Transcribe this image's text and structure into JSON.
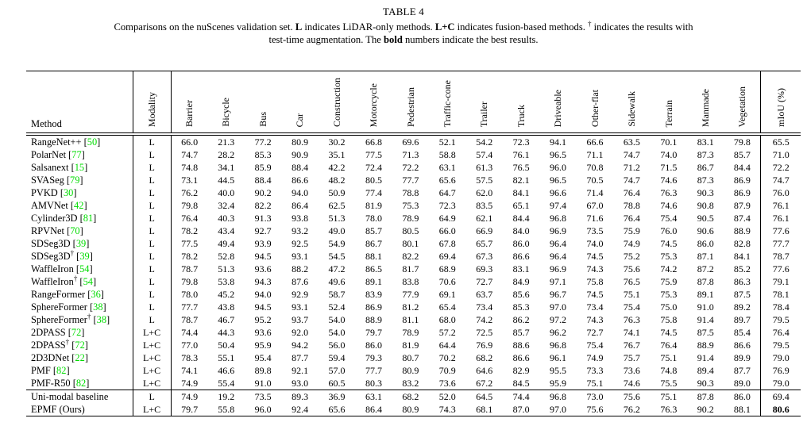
{
  "title": "TABLE 4",
  "caption": {
    "line1": [
      {
        "t": "Comparisons on the nuScenes validation set. "
      },
      {
        "t": "L",
        "b": true
      },
      {
        "t": " indicates LiDAR-only methods. "
      },
      {
        "t": "L+C",
        "b": true
      },
      {
        "t": " indicates fusion-based methods. "
      },
      {
        "t": "†",
        "sup": true
      },
      {
        "t": " indicates the results with"
      }
    ],
    "line2": [
      {
        "t": "test-time augmentation. The "
      },
      {
        "t": "bold",
        "b": true
      },
      {
        "t": " numbers indicate the best results."
      }
    ]
  },
  "table": {
    "citation_color": "#00dc00",
    "method_header": "Method",
    "modality_header": "Modality",
    "class_headers": [
      "Barrier",
      "Bicycle",
      "Bus",
      "Car",
      "Construction",
      "Motorcycle",
      "Pedestrian",
      "Traffic-cone",
      "Trailer",
      "Truck",
      "Driveable",
      "Other-flat",
      "Sidewalk",
      "Terrain",
      "Manmade",
      "Vegetation"
    ],
    "miou_header": "mIoU (%)",
    "rows": [
      {
        "method": "RangeNet++",
        "dagger": false,
        "cite": "50",
        "modality": "L",
        "values": [
          "66.0",
          "21.3",
          "77.2",
          "80.9",
          "30.2",
          "66.8",
          "69.6",
          "52.1",
          "54.2",
          "72.3",
          "94.1",
          "66.6",
          "63.5",
          "70.1",
          "83.1",
          "79.8"
        ],
        "miou": "65.5",
        "miou_bold": false,
        "separator_above": false
      },
      {
        "method": "PolarNet",
        "dagger": false,
        "cite": "77",
        "modality": "L",
        "values": [
          "74.7",
          "28.2",
          "85.3",
          "90.9",
          "35.1",
          "77.5",
          "71.3",
          "58.8",
          "57.4",
          "76.1",
          "96.5",
          "71.1",
          "74.7",
          "74.0",
          "87.3",
          "85.7"
        ],
        "miou": "71.0",
        "miou_bold": false,
        "separator_above": false
      },
      {
        "method": "Salsanext",
        "dagger": false,
        "cite": "15",
        "modality": "L",
        "values": [
          "74.8",
          "34.1",
          "85.9",
          "88.4",
          "42.2",
          "72.4",
          "72.2",
          "63.1",
          "61.3",
          "76.5",
          "96.0",
          "70.8",
          "71.2",
          "71.5",
          "86.7",
          "84.4"
        ],
        "miou": "72.2",
        "miou_bold": false,
        "separator_above": false
      },
      {
        "method": "SVASeg",
        "dagger": false,
        "cite": "79",
        "modality": "L",
        "values": [
          "73.1",
          "44.5",
          "88.4",
          "86.6",
          "48.2",
          "80.5",
          "77.7",
          "65.6",
          "57.5",
          "82.1",
          "96.5",
          "70.5",
          "74.7",
          "74.6",
          "87.3",
          "86.9"
        ],
        "miou": "74.7",
        "miou_bold": false,
        "separator_above": false
      },
      {
        "method": "PVKD",
        "dagger": false,
        "cite": "30",
        "modality": "L",
        "values": [
          "76.2",
          "40.0",
          "90.2",
          "94.0",
          "50.9",
          "77.4",
          "78.8",
          "64.7",
          "62.0",
          "84.1",
          "96.6",
          "71.4",
          "76.4",
          "76.3",
          "90.3",
          "86.9"
        ],
        "miou": "76.0",
        "miou_bold": false,
        "separator_above": false
      },
      {
        "method": "AMVNet",
        "dagger": false,
        "cite": "42",
        "modality": "L",
        "values": [
          "79.8",
          "32.4",
          "82.2",
          "86.4",
          "62.5",
          "81.9",
          "75.3",
          "72.3",
          "83.5",
          "65.1",
          "97.4",
          "67.0",
          "78.8",
          "74.6",
          "90.8",
          "87.9"
        ],
        "miou": "76.1",
        "miou_bold": false,
        "separator_above": false
      },
      {
        "method": "Cylinder3D",
        "dagger": false,
        "cite": "81",
        "modality": "L",
        "values": [
          "76.4",
          "40.3",
          "91.3",
          "93.8",
          "51.3",
          "78.0",
          "78.9",
          "64.9",
          "62.1",
          "84.4",
          "96.8",
          "71.6",
          "76.4",
          "75.4",
          "90.5",
          "87.4"
        ],
        "miou": "76.1",
        "miou_bold": false,
        "separator_above": false
      },
      {
        "method": "RPVNet",
        "dagger": false,
        "cite": "70",
        "modality": "L",
        "values": [
          "78.2",
          "43.4",
          "92.7",
          "93.2",
          "49.0",
          "85.7",
          "80.5",
          "66.0",
          "66.9",
          "84.0",
          "96.9",
          "73.5",
          "75.9",
          "76.0",
          "90.6",
          "88.9"
        ],
        "miou": "77.6",
        "miou_bold": false,
        "separator_above": false
      },
      {
        "method": "SDSeg3D",
        "dagger": false,
        "cite": "39",
        "modality": "L",
        "values": [
          "77.5",
          "49.4",
          "93.9",
          "92.5",
          "54.9",
          "86.7",
          "80.1",
          "67.8",
          "65.7",
          "86.0",
          "96.4",
          "74.0",
          "74.9",
          "74.5",
          "86.0",
          "82.8"
        ],
        "miou": "77.7",
        "miou_bold": false,
        "separator_above": false
      },
      {
        "method": "SDSeg3D",
        "dagger": true,
        "cite": "39",
        "modality": "L",
        "values": [
          "78.2",
          "52.8",
          "94.5",
          "93.1",
          "54.5",
          "88.1",
          "82.2",
          "69.4",
          "67.3",
          "86.6",
          "96.4",
          "74.5",
          "75.2",
          "75.3",
          "87.1",
          "84.1"
        ],
        "miou": "78.7",
        "miou_bold": false,
        "separator_above": false
      },
      {
        "method": "WaffleIron",
        "dagger": false,
        "cite": "54",
        "modality": "L",
        "values": [
          "78.7",
          "51.3",
          "93.6",
          "88.2",
          "47.2",
          "86.5",
          "81.7",
          "68.9",
          "69.3",
          "83.1",
          "96.9",
          "74.3",
          "75.6",
          "74.2",
          "87.2",
          "85.2"
        ],
        "miou": "77.6",
        "miou_bold": false,
        "separator_above": false
      },
      {
        "method": "WaffleIron",
        "dagger": true,
        "cite": "54",
        "modality": "L",
        "values": [
          "79.8",
          "53.8",
          "94.3",
          "87.6",
          "49.6",
          "89.1",
          "83.8",
          "70.6",
          "72.7",
          "84.9",
          "97.1",
          "75.8",
          "76.5",
          "75.9",
          "87.8",
          "86.3"
        ],
        "miou": "79.1",
        "miou_bold": false,
        "separator_above": false
      },
      {
        "method": "RangeFormer",
        "dagger": false,
        "cite": "36",
        "modality": "L",
        "values": [
          "78.0",
          "45.2",
          "94.0",
          "92.9",
          "58.7",
          "83.9",
          "77.9",
          "69.1",
          "63.7",
          "85.6",
          "96.7",
          "74.5",
          "75.1",
          "75.3",
          "89.1",
          "87.5"
        ],
        "miou": "78.1",
        "miou_bold": false,
        "separator_above": false
      },
      {
        "method": "SphereFormer",
        "dagger": false,
        "cite": "38",
        "modality": "L",
        "values": [
          "77.7",
          "43.8",
          "94.5",
          "93.1",
          "52.4",
          "86.9",
          "81.2",
          "65.4",
          "73.4",
          "85.3",
          "97.0",
          "73.4",
          "75.4",
          "75.0",
          "91.0",
          "89.2"
        ],
        "miou": "78.4",
        "miou_bold": false,
        "separator_above": false
      },
      {
        "method": "SphereFormer",
        "dagger": true,
        "cite": "38",
        "modality": "L",
        "values": [
          "78.7",
          "46.7",
          "95.2",
          "93.7",
          "54.0",
          "88.9",
          "81.1",
          "68.0",
          "74.2",
          "86.2",
          "97.2",
          "74.3",
          "76.3",
          "75.8",
          "91.4",
          "89.7"
        ],
        "miou": "79.5",
        "miou_bold": false,
        "separator_above": false
      },
      {
        "method": "2DPASS",
        "dagger": false,
        "cite": "72",
        "modality": "L+C",
        "values": [
          "74.4",
          "44.3",
          "93.6",
          "92.0",
          "54.0",
          "79.7",
          "78.9",
          "57.2",
          "72.5",
          "85.7",
          "96.2",
          "72.7",
          "74.1",
          "74.5",
          "87.5",
          "85.4"
        ],
        "miou": "76.4",
        "miou_bold": false,
        "separator_above": false
      },
      {
        "method": "2DPASS",
        "dagger": true,
        "cite": "72",
        "modality": "L+C",
        "values": [
          "77.0",
          "50.4",
          "95.9",
          "94.2",
          "56.0",
          "86.0",
          "81.9",
          "64.4",
          "76.9",
          "88.6",
          "96.8",
          "75.4",
          "76.7",
          "76.4",
          "88.9",
          "86.6"
        ],
        "miou": "79.5",
        "miou_bold": false,
        "separator_above": false
      },
      {
        "method": "2D3DNet",
        "dagger": false,
        "cite": "22",
        "modality": "L+C",
        "values": [
          "78.3",
          "55.1",
          "95.4",
          "87.7",
          "59.4",
          "79.3",
          "80.7",
          "70.2",
          "68.2",
          "86.6",
          "96.1",
          "74.9",
          "75.7",
          "75.1",
          "91.4",
          "89.9"
        ],
        "miou": "79.0",
        "miou_bold": false,
        "separator_above": false
      },
      {
        "method": "PMF",
        "dagger": false,
        "cite": "82",
        "modality": "L+C",
        "values": [
          "74.1",
          "46.6",
          "89.8",
          "92.1",
          "57.0",
          "77.7",
          "80.9",
          "70.9",
          "64.6",
          "82.9",
          "95.5",
          "73.3",
          "73.6",
          "74.8",
          "89.4",
          "87.7"
        ],
        "miou": "76.9",
        "miou_bold": false,
        "separator_above": false
      },
      {
        "method": "PMF-R50",
        "dagger": false,
        "cite": "82",
        "modality": "L+C",
        "values": [
          "74.9",
          "55.4",
          "91.0",
          "93.0",
          "60.5",
          "80.3",
          "83.2",
          "73.6",
          "67.2",
          "84.5",
          "95.9",
          "75.1",
          "74.6",
          "75.5",
          "90.3",
          "89.0"
        ],
        "miou": "79.0",
        "miou_bold": false,
        "separator_above": false
      },
      {
        "method": "Uni-modal baseline",
        "dagger": false,
        "cite": null,
        "modality": "L",
        "values": [
          "74.9",
          "19.2",
          "73.5",
          "89.3",
          "36.9",
          "63.1",
          "68.2",
          "52.0",
          "64.5",
          "74.4",
          "96.8",
          "73.0",
          "75.6",
          "75.1",
          "87.8",
          "86.0"
        ],
        "miou": "69.4",
        "miou_bold": false,
        "separator_above": true
      },
      {
        "method": "EPMF (Ours)",
        "dagger": false,
        "cite": null,
        "modality": "L+C",
        "values": [
          "79.7",
          "55.8",
          "96.0",
          "92.4",
          "65.6",
          "86.4",
          "80.9",
          "74.3",
          "68.1",
          "87.0",
          "97.0",
          "75.6",
          "76.2",
          "76.3",
          "90.2",
          "88.1"
        ],
        "miou": "80.6",
        "miou_bold": true,
        "separator_above": false
      }
    ]
  }
}
